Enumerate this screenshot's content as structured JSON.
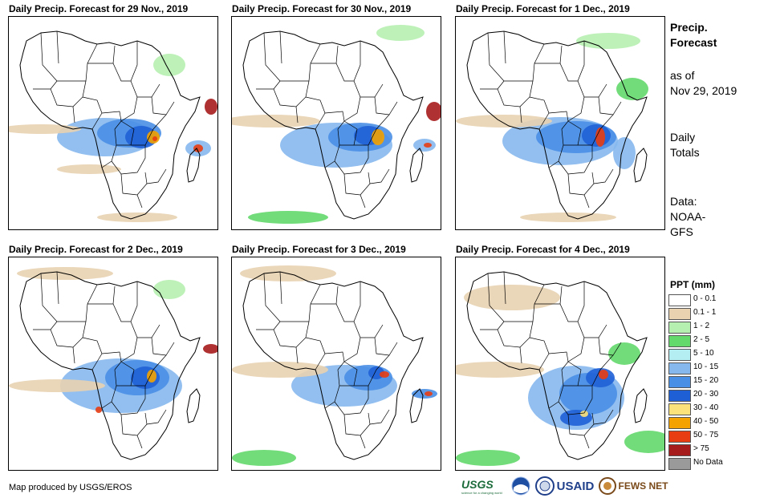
{
  "panels": [
    {
      "title": "Daily Precip. Forecast for 29 Nov., 2019"
    },
    {
      "title": "Daily Precip. Forecast for 30 Nov., 2019"
    },
    {
      "title": "Daily Precip. Forecast for 1 Dec., 2019"
    },
    {
      "title": "Daily Precip. Forecast for 2 Dec., 2019"
    },
    {
      "title": "Daily Precip. Forecast for 3 Dec., 2019"
    },
    {
      "title": "Daily Precip. Forecast for 4 Dec., 2019"
    }
  ],
  "side": {
    "heading_line1": "Precip.",
    "heading_line2": "Forecast",
    "asof_line1": "as of",
    "asof_line2": "Nov 29, 2019",
    "totals_line1": "Daily",
    "totals_line2": "Totals",
    "data_line1": "Data:",
    "data_line2": "NOAA-",
    "data_line3": "GFS"
  },
  "legend": {
    "title": "PPT (mm)",
    "items": [
      {
        "label": "0 - 0.1",
        "color": "#ffffff"
      },
      {
        "label": "0.1 - 1",
        "color": "#e8d2b0"
      },
      {
        "label": "1 - 2",
        "color": "#b6f0b0"
      },
      {
        "label": "2 - 5",
        "color": "#63d86b"
      },
      {
        "label": "5 - 10",
        "color": "#b4eef2"
      },
      {
        "label": "10 - 15",
        "color": "#86b8ee"
      },
      {
        "label": "15 - 20",
        "color": "#4a8fe6"
      },
      {
        "label": "20 - 30",
        "color": "#1f5fd6"
      },
      {
        "label": "30 - 40",
        "color": "#fce27a"
      },
      {
        "label": "40 - 50",
        "color": "#f4a200"
      },
      {
        "label": "50 - 75",
        "color": "#e83d12"
      },
      {
        "label": "> 75",
        "color": "#a61b1b"
      },
      {
        "label": "No Data",
        "color": "#9a9a9a"
      }
    ]
  },
  "footer": "Map produced by USGS/EROS",
  "logos": {
    "usgs": "USGS",
    "usgs_tagline": "science for a changing world",
    "noaa": "NOAA",
    "usaid": "USAID",
    "fews": "FEWS NET"
  }
}
